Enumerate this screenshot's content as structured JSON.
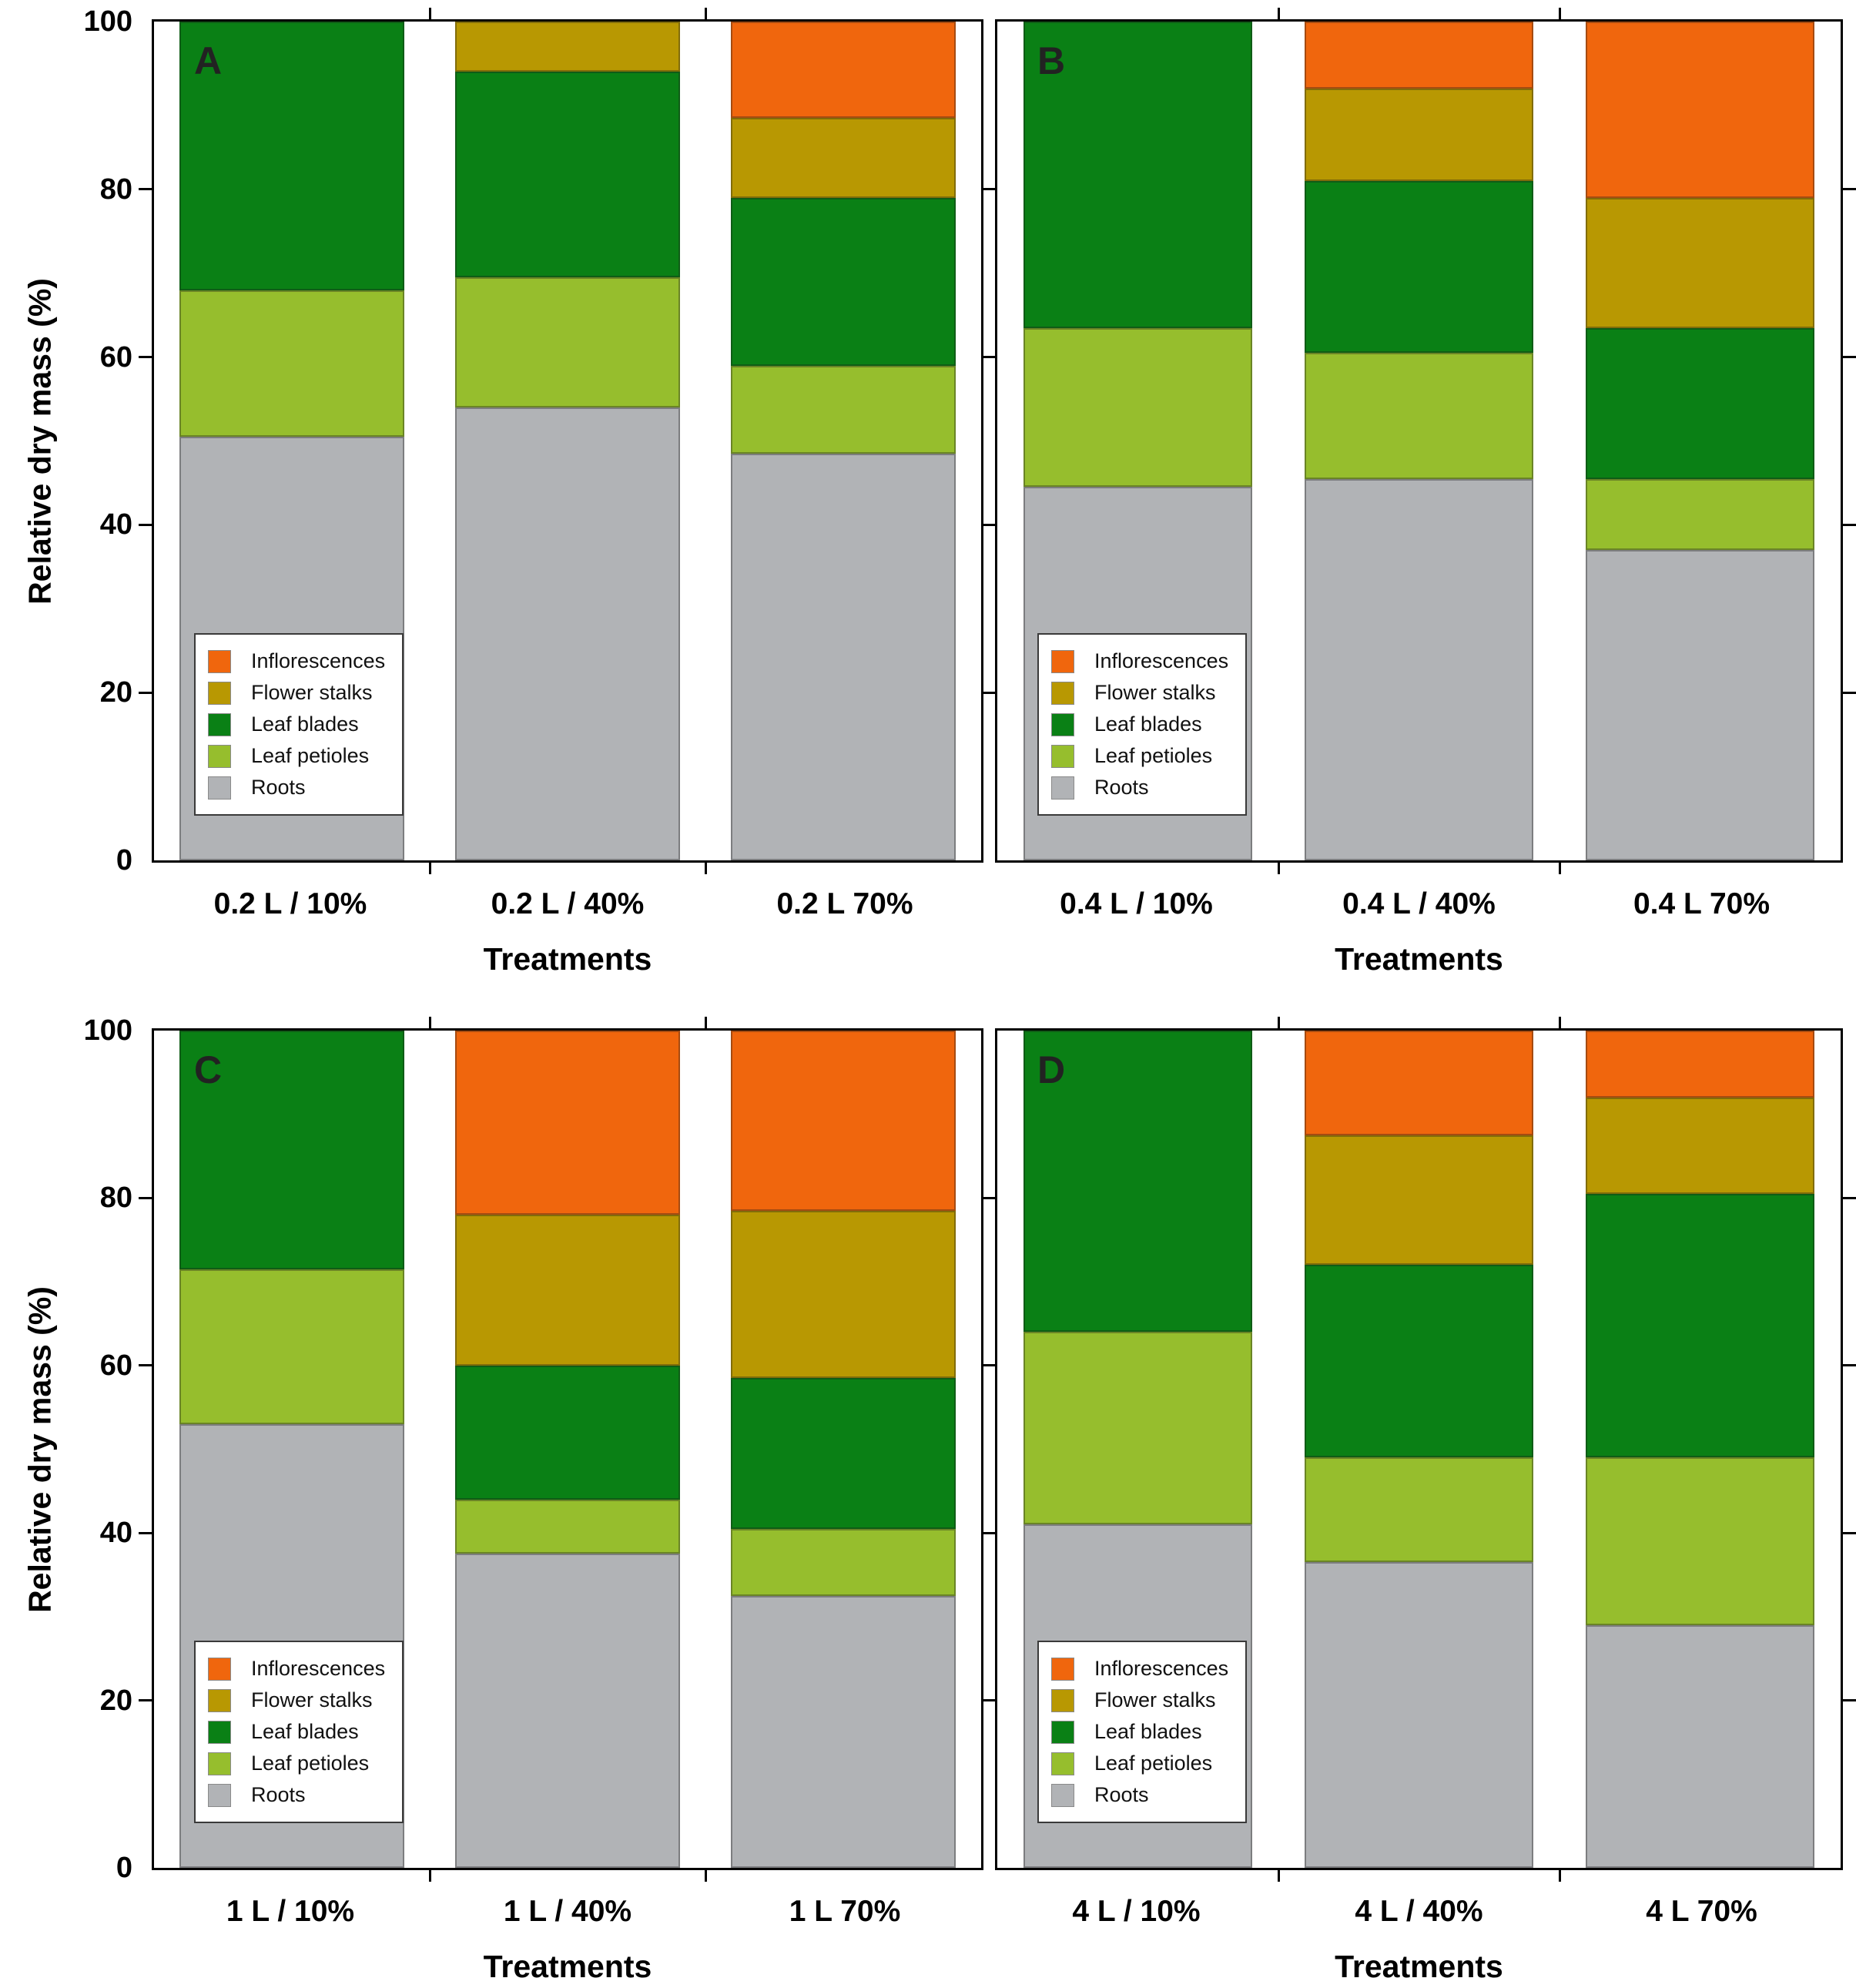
{
  "figure": {
    "background": "#ffffff",
    "ylabel": "Relative dry mass (%)",
    "xlabel": "Treatments"
  },
  "colors": {
    "Inflorescences": "#F0660D",
    "Flower stalks": "#B89802",
    "Leaf blades": "#0A8015",
    "Leaf petioles": "#96BE2D",
    "Roots": "#B1B3B6"
  },
  "legend": {
    "items": [
      "Inflorescences",
      "Flower stalks",
      "Leaf blades",
      "Leaf petioles",
      "Roots"
    ]
  },
  "chart_data": [
    {
      "type": "bar",
      "stacked": true,
      "panel_label": "A",
      "categories": [
        "0.2 L / 10%",
        "0.2 L / 40%",
        "0.2 L 70%"
      ],
      "xlabel": "Treatments",
      "ylabel": "Relative dry mass (%)",
      "ylim": [
        0,
        100
      ],
      "yticks": [
        0,
        20,
        40,
        60,
        80,
        100
      ],
      "grid": false,
      "legend_position": "lower-left",
      "series": [
        {
          "name": "Inflorescences",
          "values": [
            0,
            0,
            11.5
          ]
        },
        {
          "name": "Flower stalks",
          "values": [
            0,
            6,
            9.5
          ]
        },
        {
          "name": "Leaf blades",
          "values": [
            32,
            24.5,
            20
          ]
        },
        {
          "name": "Leaf petioles",
          "values": [
            17.5,
            15.5,
            10.5
          ]
        },
        {
          "name": "Roots",
          "values": [
            50.5,
            54,
            48.5
          ]
        }
      ]
    },
    {
      "type": "bar",
      "stacked": true,
      "panel_label": "B",
      "categories": [
        "0.4 L / 10%",
        "0.4 L / 40%",
        "0.4 L 70%"
      ],
      "xlabel": "Treatments",
      "ylabel": "Relative dry mass (%)",
      "ylim": [
        0,
        100
      ],
      "yticks": [
        0,
        20,
        40,
        60,
        80,
        100
      ],
      "grid": false,
      "legend_position": "lower-left",
      "series": [
        {
          "name": "Inflorescences",
          "values": [
            0,
            8,
            21
          ]
        },
        {
          "name": "Flower stalks",
          "values": [
            0,
            11,
            15.5
          ]
        },
        {
          "name": "Leaf blades",
          "values": [
            36.5,
            20.5,
            18
          ]
        },
        {
          "name": "Leaf petioles",
          "values": [
            19,
            15,
            8.5
          ]
        },
        {
          "name": "Roots",
          "values": [
            44.5,
            45.5,
            37
          ]
        }
      ]
    },
    {
      "type": "bar",
      "stacked": true,
      "panel_label": "C",
      "categories": [
        "1 L / 10%",
        "1 L / 40%",
        "1 L 70%"
      ],
      "xlabel": "Treatments",
      "ylabel": "Relative dry mass (%)",
      "ylim": [
        0,
        100
      ],
      "yticks": [
        0,
        20,
        40,
        60,
        80,
        100
      ],
      "grid": false,
      "legend_position": "lower-left",
      "series": [
        {
          "name": "Inflorescences",
          "values": [
            0,
            22,
            21.5
          ]
        },
        {
          "name": "Flower stalks",
          "values": [
            0,
            18,
            20
          ]
        },
        {
          "name": "Leaf blades",
          "values": [
            28.5,
            16,
            18
          ]
        },
        {
          "name": "Leaf petioles",
          "values": [
            18.5,
            6.5,
            8
          ]
        },
        {
          "name": "Roots",
          "values": [
            53,
            37.5,
            32.5
          ]
        }
      ]
    },
    {
      "type": "bar",
      "stacked": true,
      "panel_label": "D",
      "categories": [
        "4 L / 10%",
        "4 L / 40%",
        "4 L 70%"
      ],
      "xlabel": "Treatments",
      "ylabel": "Relative dry mass (%)",
      "ylim": [
        0,
        100
      ],
      "yticks": [
        0,
        20,
        40,
        60,
        80,
        100
      ],
      "grid": false,
      "legend_position": "lower-left",
      "series": [
        {
          "name": "Inflorescences",
          "values": [
            0,
            12.5,
            8
          ]
        },
        {
          "name": "Flower stalks",
          "values": [
            0,
            15.5,
            11.5
          ]
        },
        {
          "name": "Leaf blades",
          "values": [
            36,
            23,
            31.5
          ]
        },
        {
          "name": "Leaf petioles",
          "values": [
            23,
            12.5,
            20
          ]
        },
        {
          "name": "Roots",
          "values": [
            41,
            36.5,
            29
          ]
        }
      ]
    }
  ]
}
